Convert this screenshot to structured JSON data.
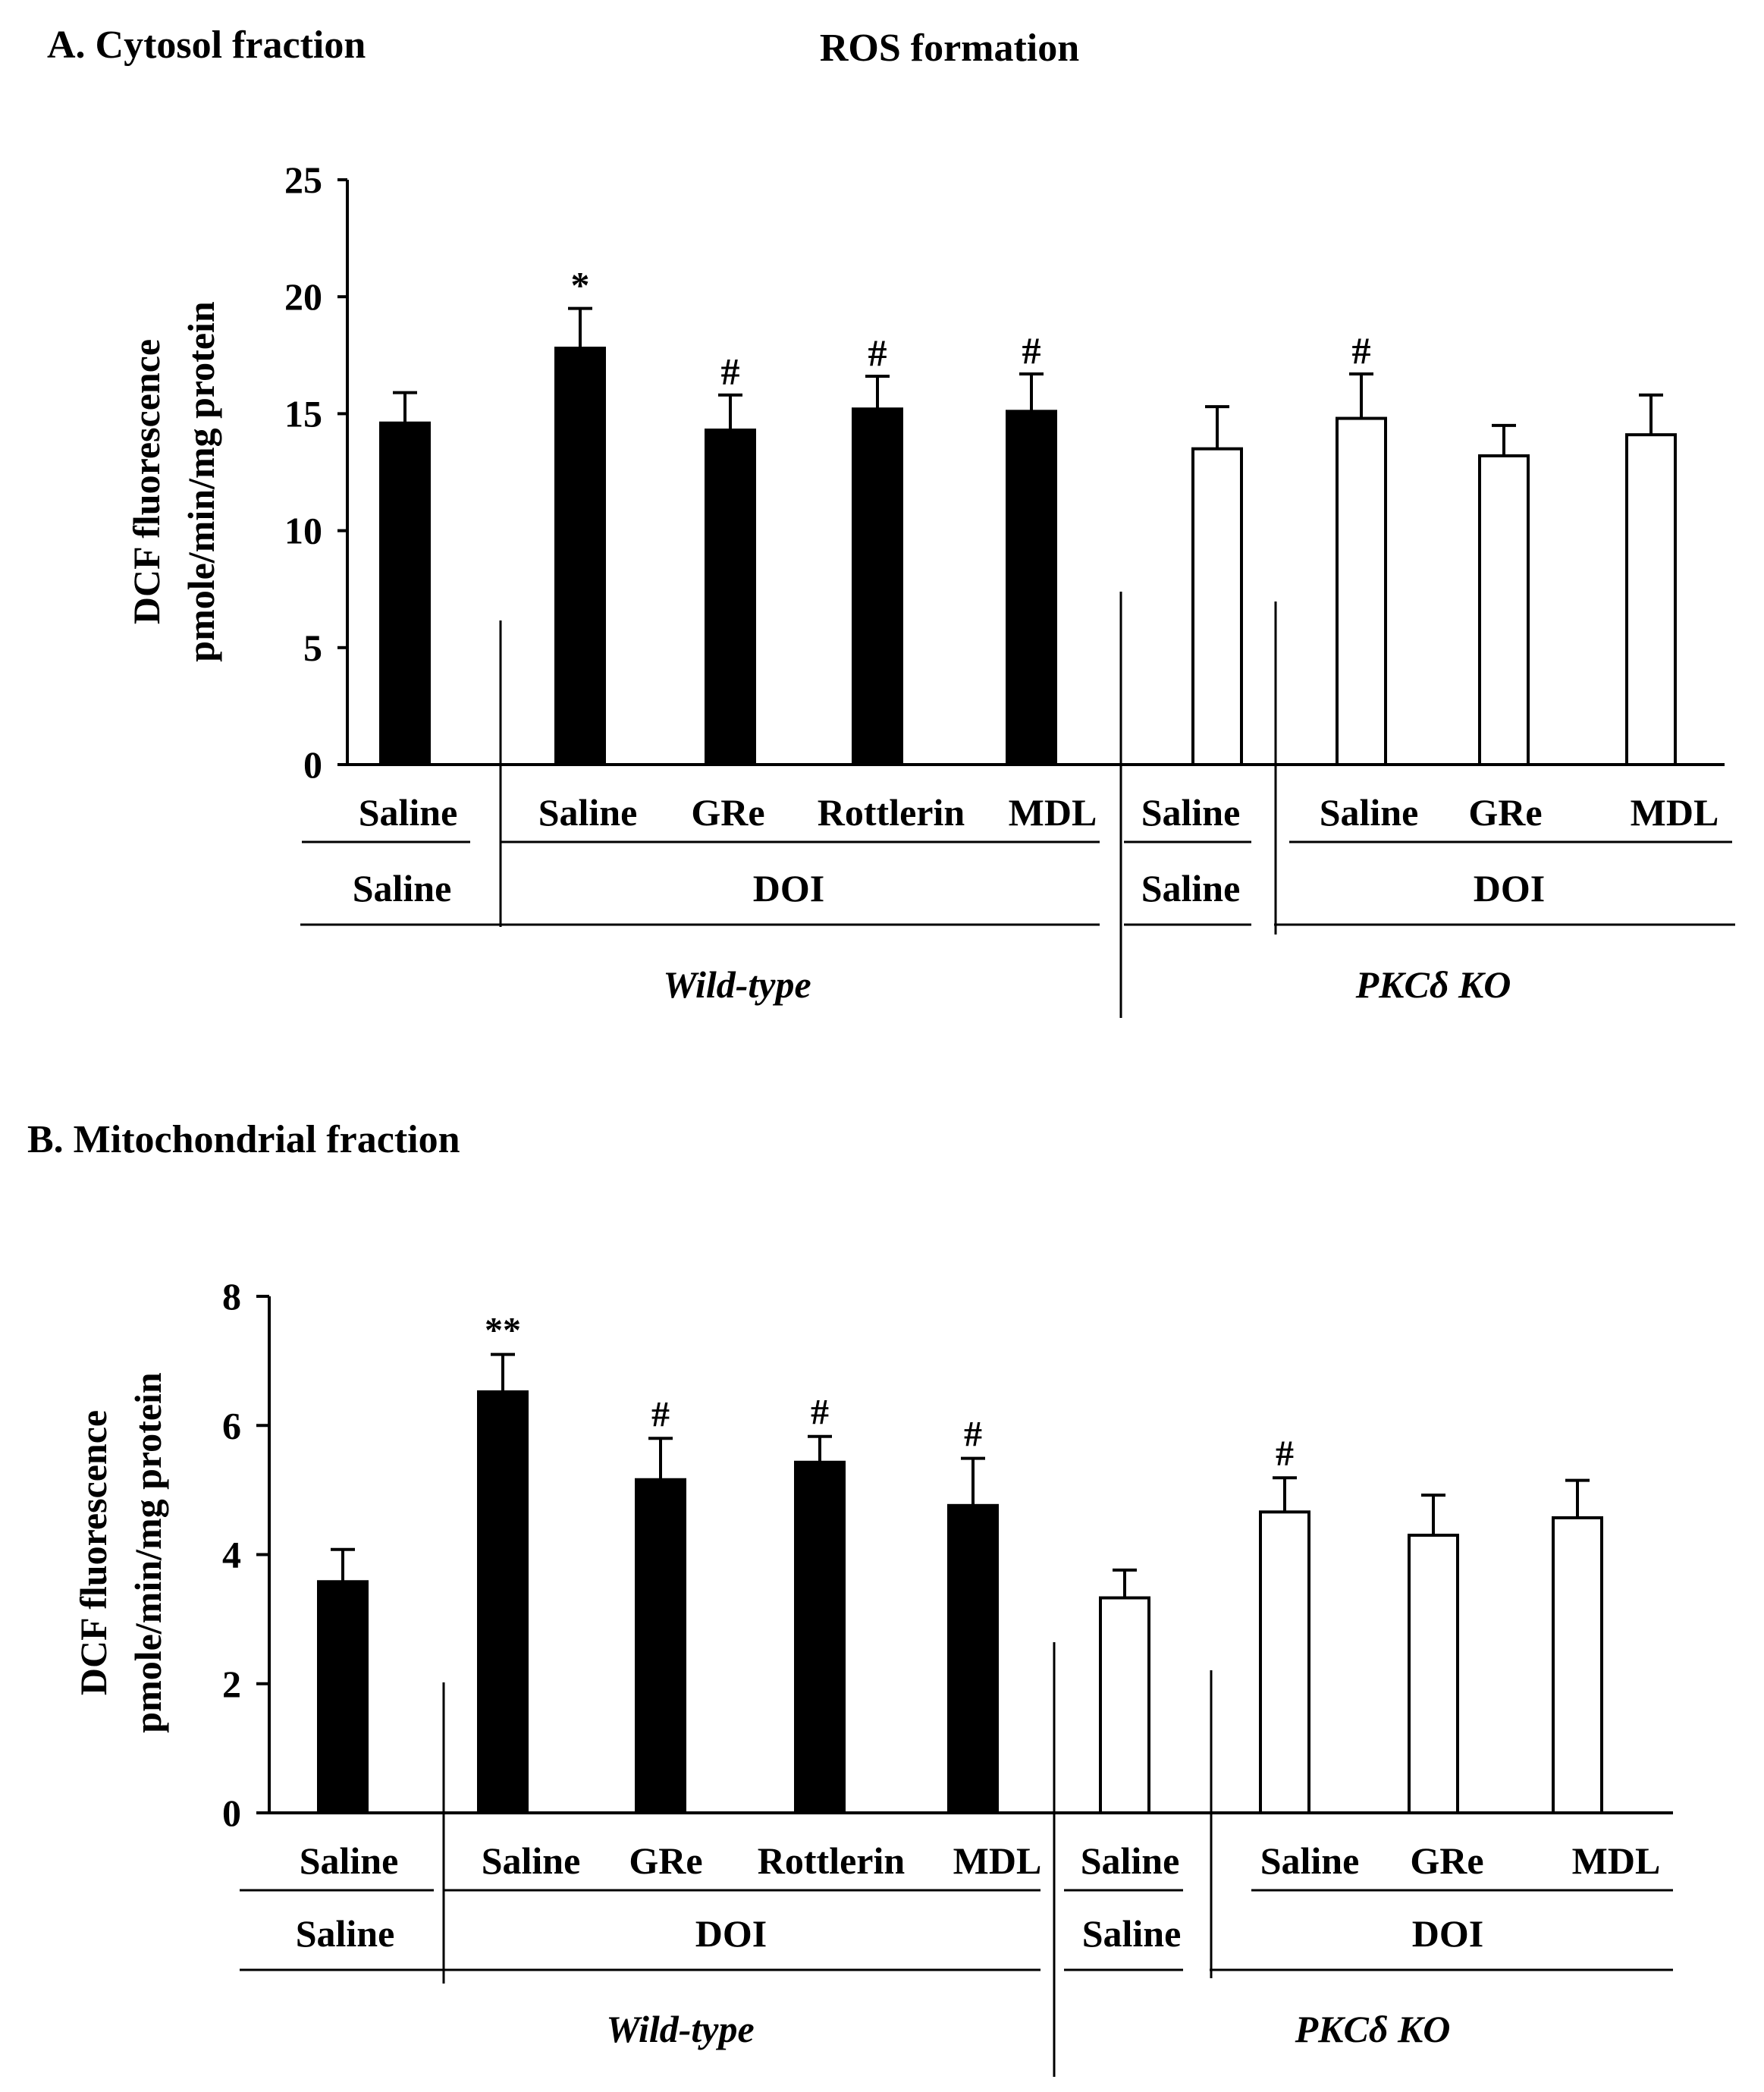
{
  "figure_title": "ROS formation",
  "chart_data": [
    {
      "type": "bar",
      "panel_title": "A. Cytosol fraction",
      "ylabel_line1": "DCF fluorescence",
      "ylabel_line2": "pmole/min/mg protein",
      "ylim": [
        0,
        25
      ],
      "yticks": [
        0,
        5,
        10,
        15,
        20,
        25
      ],
      "categories": [
        "Saline",
        "Saline",
        "GRe",
        "Rottlerin",
        "MDL",
        "Saline",
        "Saline",
        "GRe",
        "MDL"
      ],
      "values": [
        14.6,
        17.8,
        14.3,
        15.2,
        15.1,
        13.5,
        14.8,
        13.2,
        14.1
      ],
      "errors": [
        1.3,
        1.7,
        1.5,
        1.4,
        1.6,
        1.8,
        1.9,
        1.3,
        1.7
      ],
      "fill": [
        "black",
        "black",
        "black",
        "black",
        "black",
        "white",
        "white",
        "white",
        "white"
      ],
      "annotations": [
        "",
        "*",
        "#",
        "#",
        "#",
        "",
        "#",
        "",
        ""
      ],
      "treatment_row": [
        "Saline",
        "DOI",
        "Saline",
        "DOI"
      ],
      "genotypes": [
        "Wild-type",
        "PKCδ KO"
      ]
    },
    {
      "type": "bar",
      "panel_title": "B. Mitochondrial fraction",
      "ylabel_line1": "DCF fluorescence",
      "ylabel_line2": "pmole/min/mg protein",
      "ylim": [
        0,
        8
      ],
      "yticks": [
        0,
        2,
        4,
        6,
        8
      ],
      "categories": [
        "Saline",
        "Saline",
        "GRe",
        "Rottlerin",
        "MDL",
        "Saline",
        "Saline",
        "GRe",
        "MDL"
      ],
      "values": [
        3.58,
        6.52,
        5.16,
        5.43,
        4.76,
        3.33,
        4.66,
        4.3,
        4.57
      ],
      "errors": [
        0.5,
        0.58,
        0.64,
        0.4,
        0.73,
        0.43,
        0.53,
        0.62,
        0.58
      ],
      "fill": [
        "black",
        "black",
        "black",
        "black",
        "black",
        "white",
        "white",
        "white",
        "white"
      ],
      "annotations": [
        "",
        "**",
        "#",
        "#",
        "#",
        "",
        "#",
        "",
        ""
      ],
      "treatment_row": [
        "Saline",
        "DOI",
        "Saline",
        "DOI"
      ],
      "genotypes": [
        "Wild-type",
        "PKCδ KO"
      ]
    }
  ],
  "colors": {
    "ink": "#000000",
    "background": "#ffffff"
  }
}
